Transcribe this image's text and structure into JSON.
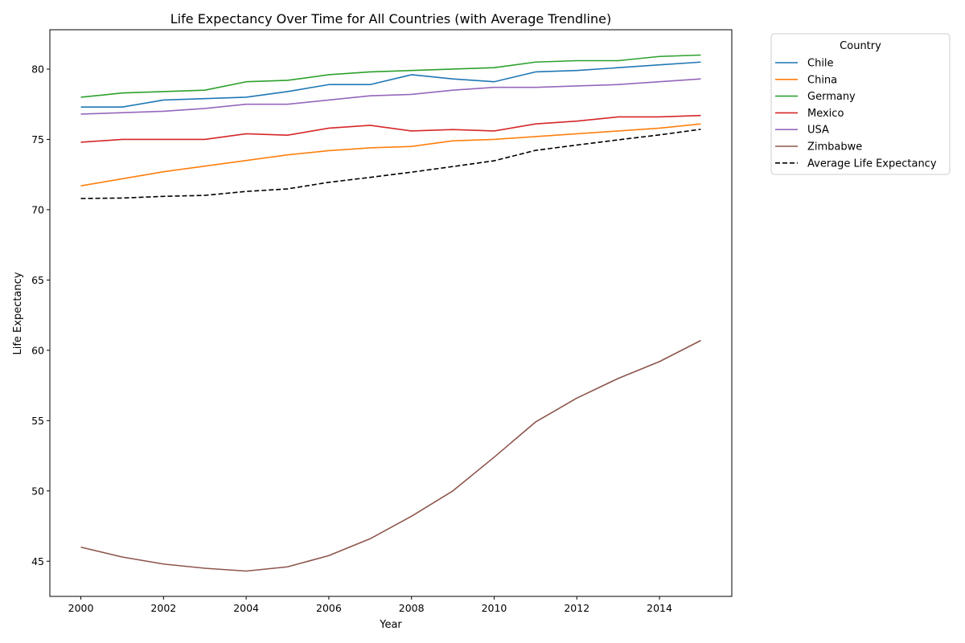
{
  "chart_data": {
    "type": "line",
    "title": "Life Expectancy Over Time for All Countries (with Average Trendline)",
    "xlabel": "Year",
    "ylabel": "Life Expectancy",
    "xlim": [
      1999.25,
      2015.75
    ],
    "ylim": [
      42.5,
      82.8
    ],
    "x_ticks": [
      2000,
      2002,
      2004,
      2006,
      2008,
      2010,
      2012,
      2014
    ],
    "y_ticks": [
      45,
      50,
      55,
      60,
      65,
      70,
      75,
      80
    ],
    "grid": false,
    "legend": {
      "title": "Country",
      "placement": "outside-top-right"
    },
    "x": [
      2000,
      2001,
      2002,
      2003,
      2004,
      2005,
      2006,
      2007,
      2008,
      2009,
      2010,
      2011,
      2012,
      2013,
      2014,
      2015
    ],
    "series": [
      {
        "name": "Chile",
        "color": "#1f77b4",
        "style": "solid",
        "values": [
          77.3,
          77.3,
          77.8,
          77.9,
          78.0,
          78.4,
          78.9,
          78.9,
          79.6,
          79.3,
          79.1,
          79.8,
          79.9,
          80.1,
          80.3,
          80.5
        ]
      },
      {
        "name": "China",
        "color": "#ff7f0e",
        "style": "solid",
        "values": [
          71.7,
          72.2,
          72.7,
          73.1,
          73.5,
          73.9,
          74.2,
          74.4,
          74.5,
          74.9,
          75.0,
          75.2,
          75.4,
          75.6,
          75.8,
          76.1
        ]
      },
      {
        "name": "Germany",
        "color": "#2ca02c",
        "style": "solid",
        "values": [
          78.0,
          78.3,
          78.4,
          78.5,
          79.1,
          79.2,
          79.6,
          79.8,
          79.9,
          80.0,
          80.1,
          80.5,
          80.6,
          80.6,
          80.9,
          81.0
        ]
      },
      {
        "name": "Mexico",
        "color": "#d62728",
        "style": "solid",
        "values": [
          74.8,
          75.0,
          75.0,
          75.0,
          75.4,
          75.3,
          75.8,
          76.0,
          75.6,
          75.7,
          75.6,
          76.1,
          76.3,
          76.6,
          76.6,
          76.7
        ]
      },
      {
        "name": "USA",
        "color": "#9467bd",
        "style": "solid",
        "values": [
          76.8,
          76.9,
          77.0,
          77.2,
          77.5,
          77.5,
          77.8,
          78.1,
          78.2,
          78.5,
          78.7,
          78.7,
          78.8,
          78.9,
          79.1,
          79.3
        ]
      },
      {
        "name": "Zimbabwe",
        "color": "#8c564b",
        "style": "solid",
        "values": [
          46.0,
          45.3,
          44.8,
          44.5,
          44.3,
          44.6,
          45.4,
          46.6,
          48.2,
          50.0,
          52.4,
          54.9,
          56.6,
          58.0,
          59.2,
          60.7
        ]
      },
      {
        "name": "Average Life Expectancy",
        "color": "#000000",
        "style": "dashed",
        "values": [
          70.8,
          70.83,
          70.95,
          71.02,
          71.3,
          71.48,
          71.95,
          72.3,
          72.67,
          73.07,
          73.48,
          74.22,
          74.6,
          74.97,
          75.32,
          75.72
        ]
      }
    ]
  }
}
